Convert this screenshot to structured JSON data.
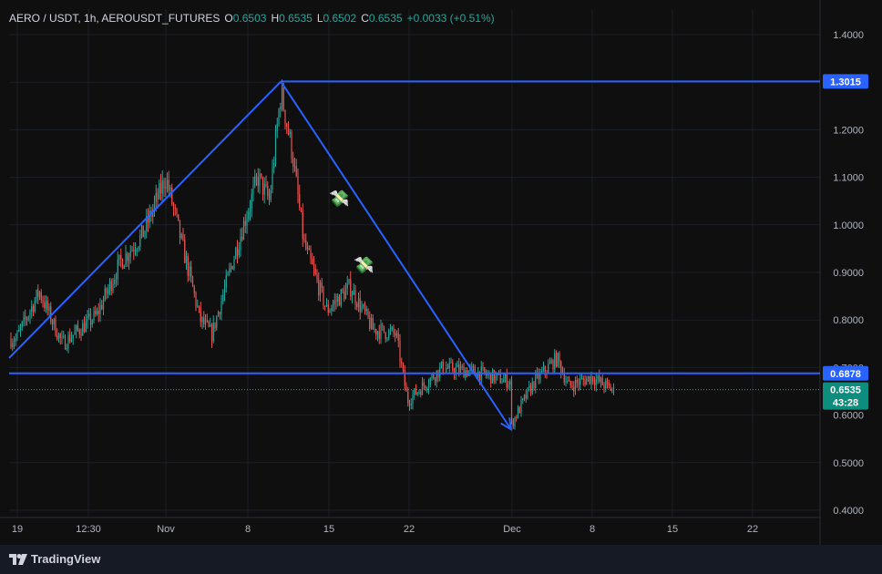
{
  "header": {
    "symbol": "AERO / USDT, 1h, AEROUSDT_FUTURES",
    "o_label": "O",
    "o_value": "0.6503",
    "h_label": "H",
    "h_value": "0.6535",
    "l_label": "L",
    "l_value": "0.6502",
    "c_label": "C",
    "c_value": "0.6535",
    "change": "+0.0033 (+0.51%)"
  },
  "branding": {
    "name": "TradingView"
  },
  "colors": {
    "up": "#26a69a",
    "down": "#ef5350",
    "drawing": "#2962ff",
    "price_line": "#26a69a"
  },
  "chart_data": {
    "type": "candlestick",
    "y_axis": {
      "ticks": [
        0.4,
        0.5,
        0.6,
        0.7,
        0.8,
        0.9,
        1.0,
        1.1,
        1.2,
        1.3,
        1.4
      ],
      "tick_labels": [
        "0.4000",
        "0.5000",
        "0.6000",
        "0.7000",
        "0.8000",
        "0.9000",
        "1.0000",
        "1.1000",
        "1.2000",
        "1.3000",
        "1.4000"
      ],
      "range": [
        0.38,
        1.43
      ]
    },
    "x_axis": {
      "ticks": [
        "19",
        "12:30",
        "Nov",
        "8",
        "15",
        "22",
        "Dec",
        "8",
        "15",
        "22"
      ]
    },
    "price_path": [
      [
        "Oct 19",
        0.76
      ],
      [
        "Oct 21",
        0.86
      ],
      [
        "Oct 23",
        0.75
      ],
      [
        "Oct 26",
        0.81
      ],
      [
        "Oct 28",
        0.92
      ],
      [
        "Oct 30",
        0.98
      ],
      [
        "Nov 1",
        1.1
      ],
      [
        "Nov 2",
        1.0
      ],
      [
        "Nov 4",
        0.8
      ],
      [
        "Nov 5",
        0.77
      ],
      [
        "Nov 7",
        0.94
      ],
      [
        "Nov 9",
        1.1
      ],
      [
        "Nov 10",
        1.05
      ],
      [
        "Nov 11",
        1.28
      ],
      [
        "Nov 12",
        1.15
      ],
      [
        "Nov 13",
        0.96
      ],
      [
        "Nov 15",
        0.82
      ],
      [
        "Nov 17",
        0.87
      ],
      [
        "Nov 19",
        0.78
      ],
      [
        "Nov 21",
        0.77
      ],
      [
        "Nov 22",
        0.63
      ],
      [
        "Nov 25",
        0.7
      ],
      [
        "Nov 28",
        0.69
      ],
      [
        "Dec 1",
        0.67
      ],
      [
        "Dec 1",
        0.58
      ],
      [
        "Dec 3",
        0.67
      ],
      [
        "Dec 5",
        0.72
      ],
      [
        "Dec 6",
        0.66
      ],
      [
        "Dec 8",
        0.68
      ],
      [
        "Dec 10",
        0.65
      ]
    ],
    "drawings": [
      {
        "type": "line",
        "points": [
          [
            "Oct 18",
            0.72
          ],
          [
            "Nov 11",
            1.3015
          ]
        ]
      },
      {
        "type": "line",
        "points": [
          [
            "Nov 11",
            1.3015
          ],
          [
            "Dec 1",
            0.57
          ]
        ],
        "arrow": true
      },
      {
        "type": "horizontal",
        "value": 1.3015,
        "label": "1.3015"
      },
      {
        "type": "horizontal",
        "value": 0.6878,
        "label": "0.6878"
      }
    ],
    "last_price": {
      "value": 0.6535,
      "label": "0.6535",
      "countdown": "43:28"
    },
    "annotations": [
      "money-emoji",
      "money-emoji"
    ]
  }
}
